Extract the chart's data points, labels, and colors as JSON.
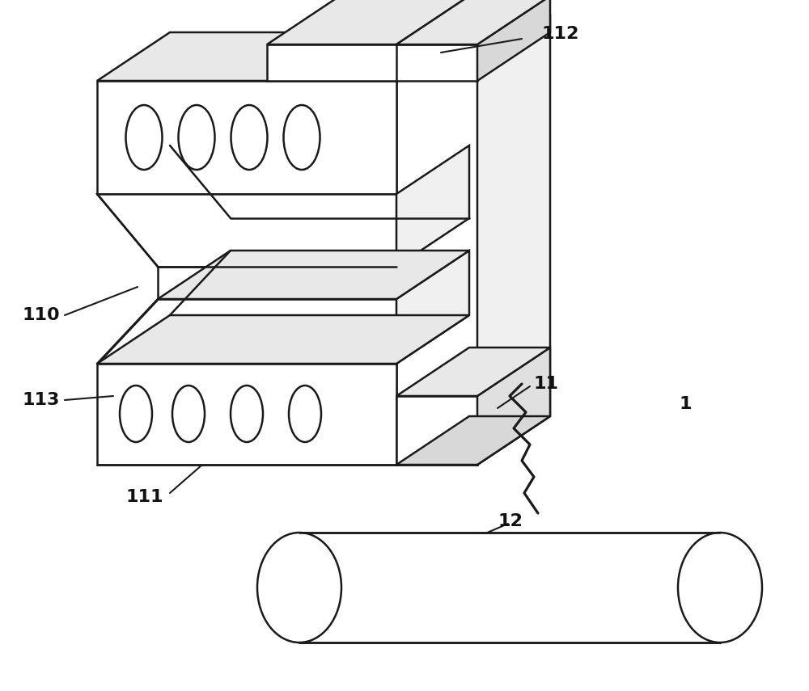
{
  "bg_color": "#ffffff",
  "line_color": "#1a1a1a",
  "lw": 1.8,
  "figsize": [
    10.0,
    8.55
  ],
  "dpi": 100,
  "label_fontsize": 16,
  "label_fontweight": "bold"
}
